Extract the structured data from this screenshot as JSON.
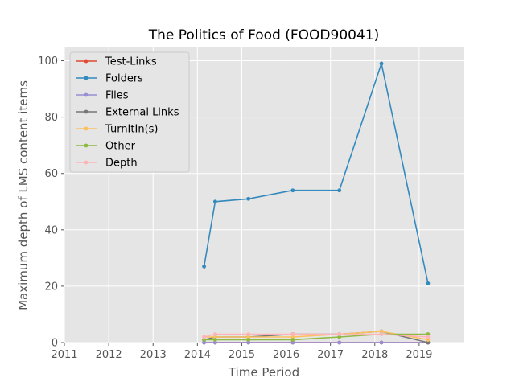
{
  "chart_data": {
    "type": "line",
    "title": "The Politics of Food (FOOD90041)",
    "xlabel": "Time Period",
    "ylabel": "Maximum depth of LMS content items",
    "xlim": [
      2011.0,
      2020.0
    ],
    "ylim": [
      0,
      105
    ],
    "x_ticks": [
      "2011",
      "2012",
      "2013",
      "2014",
      "2015",
      "2016",
      "2017",
      "2018",
      "2019"
    ],
    "y_ticks": [
      "0",
      "20",
      "40",
      "60",
      "80",
      "100"
    ],
    "grid": true,
    "legend_position": "top-left",
    "x": [
      2014.15,
      2014.4,
      2015.15,
      2016.15,
      2017.2,
      2018.15,
      2019.2
    ],
    "series": [
      {
        "name": "Test-Links",
        "color": "#e24a33",
        "values": [
          0,
          0,
          0,
          0,
          0,
          0,
          0
        ]
      },
      {
        "name": "Folders",
        "color": "#348abd",
        "values": [
          27,
          50,
          51,
          54,
          54,
          99,
          21
        ]
      },
      {
        "name": "Files",
        "color": "#988ed5",
        "values": [
          0,
          0,
          0,
          0,
          0,
          0,
          0
        ]
      },
      {
        "name": "External Links",
        "color": "#777777",
        "values": [
          1,
          2,
          2,
          3,
          3,
          4,
          0
        ]
      },
      {
        "name": "TurnItIn(s)",
        "color": "#fbc15e",
        "values": [
          2,
          2,
          2,
          2,
          3,
          4,
          1
        ]
      },
      {
        "name": "Other",
        "color": "#8eba42",
        "values": [
          1,
          1,
          1,
          1,
          2,
          3,
          3
        ]
      },
      {
        "name": "Depth",
        "color": "#ffb5b8",
        "values": [
          2,
          3,
          3,
          3,
          3,
          3,
          2
        ]
      }
    ]
  }
}
